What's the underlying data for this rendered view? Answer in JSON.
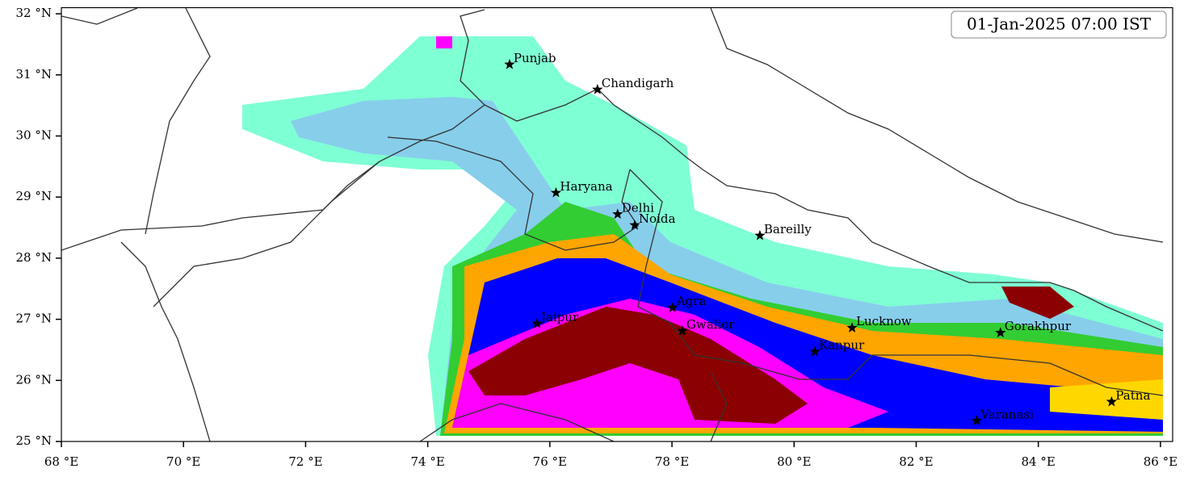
{
  "chart_data": {
    "type": "map",
    "title": "01-Jan-2025 07:00 IST",
    "xlim": [
      68,
      86.2
    ],
    "ylim": [
      25,
      32.1
    ],
    "xticks": [
      {
        "value": 68,
        "label": "68 °E"
      },
      {
        "value": 70,
        "label": "70 °E"
      },
      {
        "value": 72,
        "label": "72 °E"
      },
      {
        "value": 74,
        "label": "74 °E"
      },
      {
        "value": 76,
        "label": "76 °E"
      },
      {
        "value": 78,
        "label": "78 °E"
      },
      {
        "value": 80,
        "label": "80 °E"
      },
      {
        "value": 82,
        "label": "82 °E"
      },
      {
        "value": 84,
        "label": "84 °E"
      },
      {
        "value": 86,
        "label": "86 °E"
      }
    ],
    "yticks": [
      {
        "value": 25,
        "label": "25 °N"
      },
      {
        "value": 26,
        "label": "26 °N"
      },
      {
        "value": 27,
        "label": "27 °N"
      },
      {
        "value": 28,
        "label": "28 °N"
      },
      {
        "value": 29,
        "label": "29 °N"
      },
      {
        "value": 30,
        "label": "30 °N"
      },
      {
        "value": 31,
        "label": "31 °N"
      },
      {
        "value": 32,
        "label": "32 °N"
      }
    ],
    "points": [
      {
        "name": "Punjab",
        "lon": 75.34,
        "lat": 31.17
      },
      {
        "name": "Chandigarh",
        "lon": 76.78,
        "lat": 30.76
      },
      {
        "name": "Haryana",
        "lon": 76.1,
        "lat": 29.07
      },
      {
        "name": "Delhi",
        "lon": 77.11,
        "lat": 28.72
      },
      {
        "name": "Noida",
        "lon": 77.39,
        "lat": 28.54
      },
      {
        "name": "Bareilly",
        "lon": 79.44,
        "lat": 28.37
      },
      {
        "name": "Agra",
        "lon": 78.01,
        "lat": 27.19
      },
      {
        "name": "Jaipur",
        "lon": 75.79,
        "lat": 26.93
      },
      {
        "name": "Gwalior",
        "lon": 78.17,
        "lat": 26.81
      },
      {
        "name": "Lucknow",
        "lon": 80.95,
        "lat": 26.86
      },
      {
        "name": "Kanpur",
        "lon": 80.34,
        "lat": 26.47
      },
      {
        "name": "Gorakhpur",
        "lon": 83.38,
        "lat": 26.78
      },
      {
        "name": "Varanasi",
        "lon": 82.99,
        "lat": 25.34
      },
      {
        "name": "Patna",
        "lon": 85.2,
        "lat": 25.65
      }
    ]
  }
}
